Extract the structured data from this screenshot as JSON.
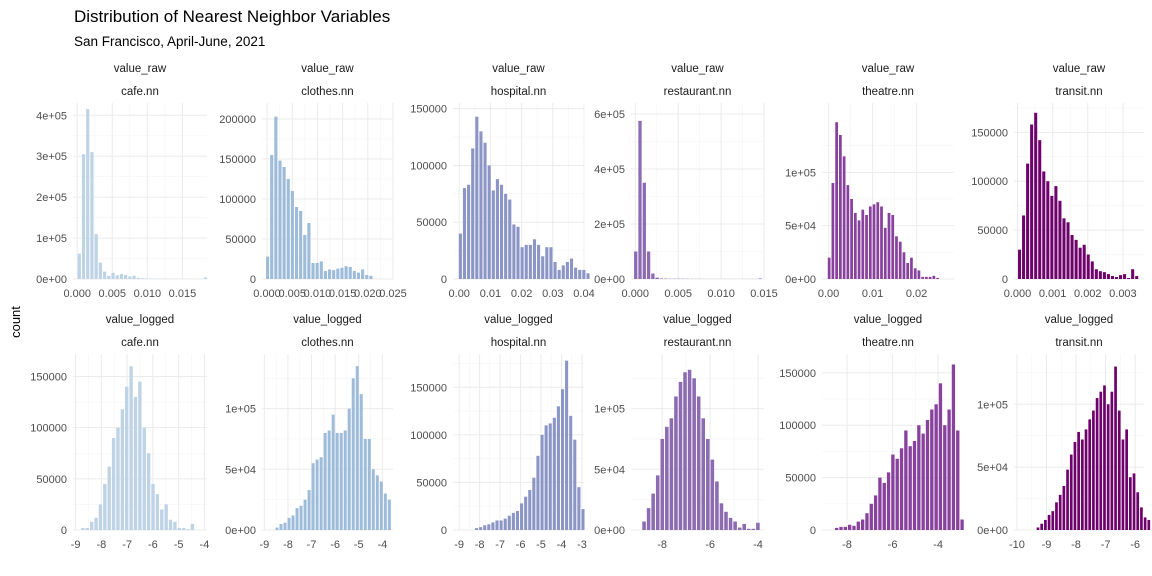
{
  "title": "Distribution of Nearest Neighbor Variables",
  "subtitle": "San Francisco, April-June, 2021",
  "chart_data": {
    "type": "bar",
    "ylabel": "count",
    "xlabel": "",
    "grid": true,
    "facet_rows": [
      "value_raw",
      "value_logged"
    ],
    "facet_cols": [
      "cafe.nn",
      "clothes.nn",
      "hospital.nn",
      "restaurant.nn",
      "theatre.nn",
      "transit.nn"
    ],
    "panels": [
      {
        "row": "value_raw",
        "col": "cafe.nn",
        "color": "#bfd3e6",
        "xlim": [
          -0.0006,
          0.0185
        ],
        "ylim": [
          0,
          430000
        ],
        "xticks": [
          0.0,
          0.005,
          0.01,
          0.015
        ],
        "xtick_labels": [
          "0.000",
          "0.005",
          "0.010",
          "0.015"
        ],
        "yticks": [
          0,
          100000,
          200000,
          300000,
          400000
        ],
        "ytick_labels": [
          "0e+00",
          "1e+05",
          "2e+05",
          "3e+05",
          "4e+05"
        ],
        "bins": {
          "start": 0.0,
          "width": 0.0006,
          "counts": [
            62000,
            305000,
            415000,
            310000,
            110000,
            40000,
            18000,
            8000,
            15000,
            9000,
            12000,
            10000,
            6000,
            8000,
            3000,
            2000,
            1500,
            1000,
            1000,
            800,
            700,
            500,
            400,
            400,
            300,
            300,
            200,
            200,
            200,
            200,
            4000
          ]
        }
      },
      {
        "row": "value_raw",
        "col": "clothes.nn",
        "color": "#9ebcda",
        "xlim": [
          -0.001,
          0.025
        ],
        "ylim": [
          0,
          220000
        ],
        "xticks": [
          0.0,
          0.005,
          0.01,
          0.015,
          0.02,
          0.025
        ],
        "xtick_labels": [
          "0.000",
          "0.005",
          "0.010",
          "0.015",
          "0.020",
          "0.025"
        ],
        "yticks": [
          0,
          50000,
          100000,
          150000,
          200000
        ],
        "ytick_labels": [
          "0",
          "50000",
          "100000",
          "150000",
          "200000"
        ],
        "bins": {
          "start": -0.0003,
          "width": 0.00082,
          "counts": [
            28000,
            155000,
            203000,
            148000,
            140000,
            125000,
            110000,
            90000,
            85000,
            55000,
            70000,
            20000,
            20000,
            22000,
            10000,
            12000,
            11000,
            13000,
            14000,
            16000,
            15000,
            10000,
            8000,
            12000,
            5000,
            4000
          ]
        }
      },
      {
        "row": "value_raw",
        "col": "hospital.nn",
        "color": "#8c96c6",
        "xlim": [
          -0.002,
          0.04
        ],
        "ylim": [
          0,
          155000
        ],
        "xticks": [
          0.0,
          0.01,
          0.02,
          0.03,
          0.04
        ],
        "xtick_labels": [
          "0.00",
          "0.01",
          "0.02",
          "0.03",
          "0.04"
        ],
        "yticks": [
          0,
          50000,
          100000,
          150000
        ],
        "ytick_labels": [
          "0",
          "50000",
          "100000",
          "150000"
        ],
        "bins": {
          "start": -0.0003,
          "width": 0.00132,
          "counts": [
            40000,
            80000,
            83000,
            115000,
            143000,
            130000,
            120000,
            100000,
            78000,
            88000,
            83000,
            75000,
            70000,
            48000,
            46000,
            28000,
            30000,
            30000,
            35000,
            30000,
            20000,
            28000,
            28000,
            15000,
            8000,
            12000,
            15000,
            18000,
            10000,
            8000,
            8000,
            5000
          ]
        }
      },
      {
        "row": "value_raw",
        "col": "restaurant.nn",
        "color": "#8c6bb1",
        "xlim": [
          -0.0005,
          0.015
        ],
        "ylim": [
          0,
          640000
        ],
        "xticks": [
          0.0,
          0.005,
          0.01,
          0.015
        ],
        "xtick_labels": [
          "0.000",
          "0.005",
          "0.010",
          "0.015"
        ],
        "yticks": [
          0,
          200000,
          400000,
          600000
        ],
        "ytick_labels": [
          "0e+00",
          "2e+05",
          "4e+05",
          "6e+05"
        ],
        "bins": {
          "start": -0.0002,
          "width": 0.0005,
          "counts": [
            100000,
            575000,
            350000,
            100000,
            20000,
            5000,
            2000,
            1500,
            1000,
            1000,
            1000,
            800,
            700,
            600,
            500,
            500,
            400,
            400,
            300,
            300,
            300,
            300,
            300,
            300,
            300,
            300,
            300,
            300,
            300,
            2000
          ]
        }
      },
      {
        "row": "value_raw",
        "col": "theatre.nn",
        "color": "#88419d",
        "xlim": [
          -0.0015,
          0.0285
        ],
        "ylim": [
          0,
          165000
        ],
        "xticks": [
          0.0,
          0.01,
          0.02
        ],
        "xtick_labels": [
          "0.00",
          "0.01",
          "0.02"
        ],
        "yticks": [
          0,
          50000,
          100000
        ],
        "ytick_labels": [
          "0e+00",
          "5e+04",
          "1e+05"
        ],
        "bins": {
          "start": -0.0003,
          "width": 0.00085,
          "counts": [
            20000,
            90000,
            147000,
            135000,
            115000,
            88000,
            75000,
            62000,
            55000,
            65000,
            60000,
            68000,
            70000,
            72000,
            68000,
            48000,
            62000,
            60000,
            40000,
            35000,
            25000,
            15000,
            20000,
            10000,
            8000,
            2000,
            2000,
            2000,
            3000,
            1000
          ]
        }
      },
      {
        "row": "value_raw",
        "col": "transit.nn",
        "color": "#6e016b",
        "xlim": [
          -0.0001,
          0.0036
        ],
        "ylim": [
          0,
          180000
        ],
        "xticks": [
          0.0,
          0.001,
          0.002,
          0.003
        ],
        "xtick_labels": [
          "0.000",
          "0.001",
          "0.002",
          "0.003"
        ],
        "yticks": [
          0,
          50000,
          100000,
          150000
        ],
        "ytick_labels": [
          "0",
          "50000",
          "100000",
          "150000"
        ],
        "bins": {
          "start": 0.0,
          "width": 0.000115,
          "counts": [
            30000,
            65000,
            118000,
            158000,
            170000,
            142000,
            110000,
            100000,
            85000,
            95000,
            80000,
            62000,
            58000,
            45000,
            40000,
            32000,
            35000,
            25000,
            18000,
            10000,
            8000,
            7000,
            5000,
            3000,
            2000,
            4000,
            5000,
            1000,
            10000,
            3000
          ]
        }
      },
      {
        "row": "value_logged",
        "col": "cafe.nn",
        "color": "#bfd3e6",
        "xlim": [
          -9.1,
          -3.9
        ],
        "ylim": [
          0,
          172000
        ],
        "xticks": [
          -9,
          -8,
          -7,
          -6,
          -5,
          -4
        ],
        "xtick_labels": [
          "-9",
          "-8",
          "-7",
          "-6",
          "-5",
          "-4"
        ],
        "yticks": [
          0,
          50000,
          100000,
          150000
        ],
        "ytick_labels": [
          "0",
          "50000",
          "100000",
          "150000"
        ],
        "bins": {
          "start": -8.8,
          "width": 0.17,
          "counts": [
            2000,
            2000,
            8000,
            12000,
            25000,
            45000,
            62000,
            90000,
            100000,
            118000,
            140000,
            160000,
            130000,
            145000,
            100000,
            75000,
            45000,
            35000,
            20000,
            25000,
            10000,
            8000,
            2000,
            2000,
            1000,
            6000
          ]
        }
      },
      {
        "row": "value_logged",
        "col": "clothes.nn",
        "color": "#9ebcda",
        "xlim": [
          -9.1,
          -3.55
        ],
        "ylim": [
          0,
          145000
        ],
        "xticks": [
          -9,
          -8,
          -7,
          -6,
          -5,
          -4
        ],
        "xtick_labels": [
          "-9",
          "-8",
          "-7",
          "-6",
          "-5",
          "-4"
        ],
        "yticks": [
          0,
          50000,
          100000
        ],
        "ytick_labels": [
          "0e+00",
          "5e+04",
          "1e+05"
        ],
        "bins": {
          "start": -8.55,
          "width": 0.17,
          "counts": [
            2000,
            5000,
            6000,
            10000,
            12000,
            18000,
            20000,
            25000,
            33000,
            55000,
            58000,
            60000,
            80000,
            82000,
            95000,
            80000,
            80000,
            82000,
            100000,
            125000,
            135000,
            112000,
            75000,
            75000,
            50000,
            45000,
            40000,
            30000,
            25000
          ]
        }
      },
      {
        "row": "value_logged",
        "col": "hospital.nn",
        "color": "#8c96c6",
        "xlim": [
          -9.3,
          -2.9
        ],
        "ylim": [
          0,
          185000
        ],
        "xticks": [
          -9,
          -8,
          -7,
          -6,
          -5,
          -4,
          -3
        ],
        "xtick_labels": [
          "-9",
          "-8",
          "-7",
          "-6",
          "-5",
          "-4",
          "-3"
        ],
        "yticks": [
          0,
          50000,
          100000,
          150000
        ],
        "ytick_labels": [
          "0",
          "50000",
          "100000",
          "150000"
        ],
        "bins": {
          "start": -8.25,
          "width": 0.2,
          "counts": [
            2000,
            3000,
            5000,
            6000,
            8000,
            10000,
            10000,
            12000,
            15000,
            18000,
            20000,
            28000,
            35000,
            42000,
            55000,
            78000,
            100000,
            110000,
            112000,
            118000,
            130000,
            148000,
            178000,
            120000,
            95000,
            45000,
            22000
          ]
        }
      },
      {
        "row": "value_logged",
        "col": "restaurant.nn",
        "color": "#8c6bb1",
        "xlim": [
          -9.3,
          -3.75
        ],
        "ylim": [
          0,
          145000
        ],
        "xticks": [
          -8,
          -6,
          -4
        ],
        "xtick_labels": [
          "-8",
          "-6",
          "-4"
        ],
        "yticks": [
          0,
          50000,
          100000
        ],
        "ytick_labels": [
          "0e+00",
          "5e+04",
          "1e+05"
        ],
        "bins": {
          "start": -8.85,
          "width": 0.19,
          "counts": [
            7000,
            18000,
            30000,
            45000,
            75000,
            85000,
            92000,
            110000,
            122000,
            130000,
            132000,
            125000,
            110000,
            92000,
            75000,
            58000,
            40000,
            22000,
            15000,
            10000,
            7000,
            2000,
            5000,
            1000,
            1000,
            6000
          ]
        }
      },
      {
        "row": "value_logged",
        "col": "theatre.nn",
        "color": "#88419d",
        "xlim": [
          -9.1,
          -3.3
        ],
        "ylim": [
          0,
          168000
        ],
        "xticks": [
          -8,
          -6,
          -4
        ],
        "xtick_labels": [
          "-8",
          "-6",
          "-4"
        ],
        "yticks": [
          0,
          50000,
          100000,
          150000
        ],
        "ytick_labels": [
          "0",
          "50000",
          "100000",
          "150000"
        ],
        "bins": {
          "start": -8.55,
          "width": 0.19,
          "counts": [
            2000,
            3000,
            3000,
            5000,
            4000,
            8000,
            10000,
            16000,
            25000,
            33000,
            50000,
            45000,
            55000,
            72000,
            68000,
            78000,
            95000,
            80000,
            85000,
            100000,
            92000,
            105000,
            115000,
            120000,
            140000,
            100000,
            115000,
            158000,
            95000,
            10000
          ]
        }
      },
      {
        "row": "value_logged",
        "col": "transit.nn",
        "color": "#6e016b",
        "xlim": [
          -10.1,
          -5.7
        ],
        "ylim": [
          0,
          140000
        ],
        "xticks": [
          -10,
          -9,
          -8,
          -7,
          -6
        ],
        "xtick_labels": [
          "-10",
          "-9",
          "-8",
          "-7",
          "-6"
        ],
        "yticks": [
          0,
          50000,
          100000
        ],
        "ytick_labels": [
          "0e+00",
          "5e+04",
          "1e+05"
        ],
        "bins": {
          "start": -9.35,
          "width": 0.125,
          "counts": [
            2000,
            5000,
            8000,
            12000,
            15000,
            22000,
            28000,
            35000,
            48000,
            60000,
            70000,
            78000,
            72000,
            80000,
            88000,
            95000,
            105000,
            110000,
            115000,
            100000,
            110000,
            130000,
            95000,
            72000,
            80000,
            42000,
            45000,
            30000,
            18000,
            10000,
            8000
          ]
        }
      }
    ]
  }
}
